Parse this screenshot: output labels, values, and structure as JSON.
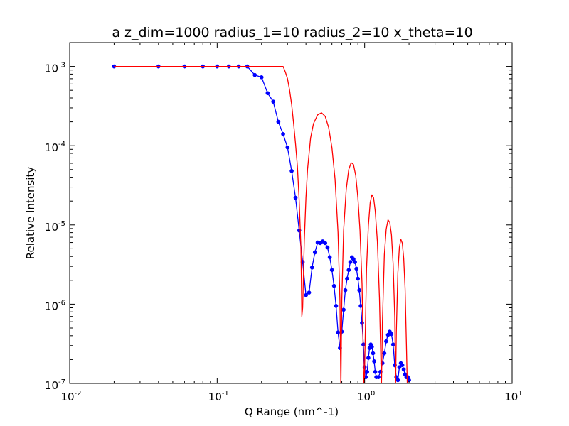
{
  "chart_data": {
    "type": "line",
    "title": "a z_dim=1000 radius_1=10 radius_2=10 x_theta=10",
    "xlabel": "Q Range (nm^-1)",
    "ylabel": "Relative Intensity",
    "xscale": "log",
    "yscale": "log",
    "xlim": [
      0.01,
      10
    ],
    "ylim": [
      1e-07,
      0.002
    ],
    "grid": false,
    "legend": "none",
    "x_ticks": [
      {
        "value": 0.01,
        "base": "10",
        "exp": "-2"
      },
      {
        "value": 0.1,
        "base": "10",
        "exp": "-1"
      },
      {
        "value": 1,
        "base": "10",
        "exp": "0"
      },
      {
        "value": 10,
        "base": "10",
        "exp": "1"
      }
    ],
    "y_ticks": [
      {
        "value": 1e-07,
        "base": "10",
        "exp": "-7"
      },
      {
        "value": 1e-06,
        "base": "10",
        "exp": "-6"
      },
      {
        "value": 1e-05,
        "base": "10",
        "exp": "-5"
      },
      {
        "value": 0.0001,
        "base": "10",
        "exp": "-4"
      },
      {
        "value": 0.001,
        "base": "10",
        "exp": "-3"
      }
    ],
    "series": [
      {
        "color": "#0000ff",
        "style": "line-markers",
        "points": [
          [
            0.02,
            0.001
          ],
          [
            0.04,
            0.001
          ],
          [
            0.06,
            0.001
          ],
          [
            0.08,
            0.001
          ],
          [
            0.1,
            0.001
          ],
          [
            0.12,
            0.001
          ],
          [
            0.14,
            0.001
          ],
          [
            0.16,
            0.001
          ],
          [
            0.18,
            0.00078
          ],
          [
            0.2,
            0.00073
          ],
          [
            0.22,
            0.00046
          ],
          [
            0.24,
            0.00036
          ],
          [
            0.26,
            0.0002
          ],
          [
            0.28,
            0.00014
          ],
          [
            0.3,
            9.5e-05
          ],
          [
            0.32,
            4.8e-05
          ],
          [
            0.34,
            2.2e-05
          ],
          [
            0.36,
            8.5e-06
          ],
          [
            0.38,
            3.4e-06
          ],
          [
            0.4,
            1.3e-06
          ],
          [
            0.42,
            1.4e-06
          ],
          [
            0.44,
            2.9e-06
          ],
          [
            0.46,
            4.5e-06
          ],
          [
            0.48,
            6e-06
          ],
          [
            0.5,
            5.9e-06
          ],
          [
            0.52,
            6.2e-06
          ],
          [
            0.54,
            5.9e-06
          ],
          [
            0.56,
            5.2e-06
          ],
          [
            0.58,
            3.9e-06
          ],
          [
            0.6,
            2.7e-06
          ],
          [
            0.62,
            1.7e-06
          ],
          [
            0.64,
            9.5e-07
          ],
          [
            0.66,
            4.4e-07
          ],
          [
            0.68,
            2.8e-07
          ],
          [
            0.7,
            4.5e-07
          ],
          [
            0.72,
            8.5e-07
          ],
          [
            0.74,
            1.5e-06
          ],
          [
            0.76,
            2.1e-06
          ],
          [
            0.78,
            2.7e-06
          ],
          [
            0.8,
            3.4e-06
          ],
          [
            0.82,
            3.9e-06
          ],
          [
            0.84,
            3.7e-06
          ],
          [
            0.86,
            3.4e-06
          ],
          [
            0.88,
            2.8e-06
          ],
          [
            0.9,
            2.1e-06
          ],
          [
            0.92,
            1.5e-06
          ],
          [
            0.94,
            9.5e-07
          ],
          [
            0.96,
            5.8e-07
          ],
          [
            0.98,
            3.1e-07
          ],
          [
            1.0,
            1.6e-07
          ],
          [
            1.02,
            1.2e-07
          ],
          [
            1.04,
            1.4e-07
          ],
          [
            1.06,
            2.1e-07
          ],
          [
            1.08,
            2.8e-07
          ],
          [
            1.1,
            3.1e-07
          ],
          [
            1.12,
            2.9e-07
          ],
          [
            1.14,
            2.4e-07
          ],
          [
            1.16,
            1.9e-07
          ],
          [
            1.18,
            1.4e-07
          ],
          [
            1.2,
            1.2e-07
          ],
          [
            1.24,
            1.2e-07
          ],
          [
            1.28,
            1.4e-07
          ],
          [
            1.32,
            1.8e-07
          ],
          [
            1.36,
            2.4e-07
          ],
          [
            1.4,
            3.4e-07
          ],
          [
            1.44,
            4.1e-07
          ],
          [
            1.48,
            4.5e-07
          ],
          [
            1.52,
            4.2e-07
          ],
          [
            1.56,
            3.1e-07
          ],
          [
            1.6,
            1.7e-07
          ],
          [
            1.64,
            1.2e-07
          ],
          [
            1.68,
            1.1e-07
          ],
          [
            1.72,
            1.6e-07
          ],
          [
            1.76,
            1.8e-07
          ],
          [
            1.8,
            1.7e-07
          ],
          [
            1.84,
            1.5e-07
          ],
          [
            1.88,
            1.3e-07
          ],
          [
            1.92,
            1.2e-07
          ],
          [
            1.96,
            1.2e-07
          ],
          [
            2.0,
            1.1e-07
          ]
        ]
      },
      {
        "color": "#ff0000",
        "style": "line",
        "points": [
          [
            0.02,
            0.001
          ],
          [
            0.1,
            0.001
          ],
          [
            0.2,
            0.001
          ],
          [
            0.28,
            0.001
          ],
          [
            0.29,
            0.00085
          ],
          [
            0.3,
            0.0007
          ],
          [
            0.31,
            0.0005
          ],
          [
            0.32,
            0.00033
          ],
          [
            0.33,
            0.00019
          ],
          [
            0.34,
            0.000105
          ],
          [
            0.35,
            5.5e-05
          ],
          [
            0.36,
            2e-05
          ],
          [
            0.37,
            5e-06
          ],
          [
            0.375,
            7e-07
          ],
          [
            0.38,
            9e-07
          ],
          [
            0.39,
            6.5e-06
          ],
          [
            0.4,
            2.2e-05
          ],
          [
            0.41,
            5e-05
          ],
          [
            0.43,
            0.000125
          ],
          [
            0.45,
            0.00019
          ],
          [
            0.48,
            0.000245
          ],
          [
            0.51,
            0.00026
          ],
          [
            0.54,
            0.000235
          ],
          [
            0.57,
            0.00017
          ],
          [
            0.6,
            9.5e-05
          ],
          [
            0.63,
            3.8e-05
          ],
          [
            0.66,
            8e-06
          ],
          [
            0.68,
            1.1e-06
          ],
          [
            0.69,
            8e-08
          ],
          [
            0.7,
            1.1e-06
          ],
          [
            0.72,
            8.5e-06
          ],
          [
            0.75,
            2.8e-05
          ],
          [
            0.78,
            5e-05
          ],
          [
            0.81,
            6.1e-05
          ],
          [
            0.84,
            5.8e-05
          ],
          [
            0.87,
            4.2e-05
          ],
          [
            0.9,
            2.2e-05
          ],
          [
            0.93,
            8.5e-06
          ],
          [
            0.96,
            1.8e-06
          ],
          [
            0.985,
            1.2e-07
          ],
          [
            0.99,
            7e-08
          ],
          [
            1.0,
            1.6e-07
          ],
          [
            1.03,
            2.8e-06
          ],
          [
            1.06,
            9.8e-06
          ],
          [
            1.09,
            1.9e-05
          ],
          [
            1.12,
            2.4e-05
          ],
          [
            1.15,
            2.2e-05
          ],
          [
            1.18,
            1.5e-05
          ],
          [
            1.22,
            6.2e-06
          ],
          [
            1.26,
            1.2e-06
          ],
          [
            1.3,
            9e-08
          ],
          [
            1.32,
            6e-07
          ],
          [
            1.36,
            4.2e-06
          ],
          [
            1.4,
            8.8e-06
          ],
          [
            1.44,
            1.16e-05
          ],
          [
            1.48,
            1.08e-05
          ],
          [
            1.52,
            7.5e-06
          ],
          [
            1.56,
            3.2e-06
          ],
          [
            1.6,
            7e-07
          ],
          [
            1.62,
            8e-08
          ],
          [
            1.64,
            4.5e-07
          ],
          [
            1.68,
            2.5e-06
          ],
          [
            1.72,
            5.2e-06
          ],
          [
            1.76,
            6.6e-06
          ],
          [
            1.8,
            5.9e-06
          ],
          [
            1.84,
            3.8e-06
          ],
          [
            1.88,
            1.6e-06
          ],
          [
            1.92,
            3e-07
          ],
          [
            1.95,
            8e-08
          ]
        ]
      }
    ]
  }
}
